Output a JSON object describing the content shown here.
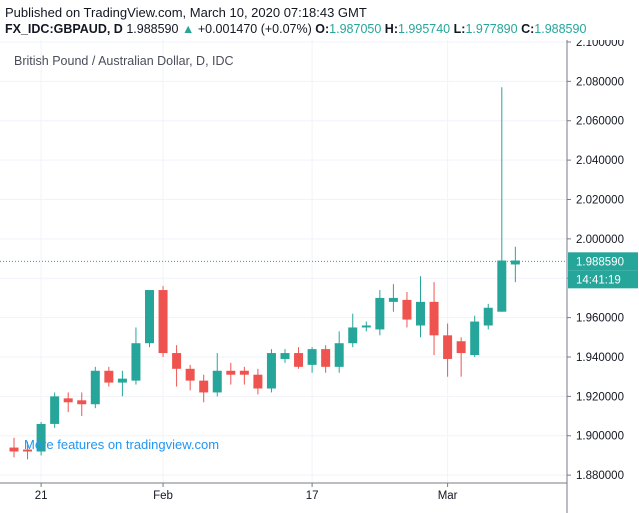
{
  "header": {
    "published": "Published on TradingView.com, March 10, 2020 07:18:43 GMT",
    "symbol": "FX_IDC:GBPAUD, D",
    "last": "1.988590",
    "change": "+0.001470 (+0.07%)",
    "o_label": "O:",
    "o_value": "1.987050",
    "h_label": "H:",
    "h_value": "1.995740",
    "l_label": "L:",
    "l_value": "1.977890",
    "c_label": "C:",
    "c_value": "1.988590"
  },
  "overlay": {
    "title": "British Pound / Australian Dollar, D, IDC",
    "promo": "More features on tradingview.com"
  },
  "colors": {
    "up": "#26a69a",
    "down": "#ef5350",
    "price_line": "#26a69a",
    "text": "#131722"
  },
  "chart_data": {
    "type": "candlestick",
    "title": "British Pound / Australian Dollar, D, IDC",
    "y_ticks": [
      "1.880000",
      "1.900000",
      "1.920000",
      "1.940000",
      "1.960000",
      "1.980000",
      "2.000000",
      "2.020000",
      "2.040000",
      "2.060000",
      "2.080000",
      "2.100000"
    ],
    "ylim": [
      1.876,
      2.101
    ],
    "x_ticks": [
      {
        "label": "21",
        "index": 2
      },
      {
        "label": "Feb",
        "index": 11
      },
      {
        "label": "17",
        "index": 22
      },
      {
        "label": "Mar",
        "index": 32
      }
    ],
    "last_price_label": "1.988590",
    "countdown_label": "14:41:19",
    "grid": true,
    "candles": [
      {
        "o": 1.894,
        "h": 1.899,
        "l": 1.889,
        "c": 1.892
      },
      {
        "o": 1.893,
        "h": 1.897,
        "l": 1.888,
        "c": 1.892
      },
      {
        "o": 1.892,
        "h": 1.907,
        "l": 1.89,
        "c": 1.906
      },
      {
        "o": 1.906,
        "h": 1.922,
        "l": 1.904,
        "c": 1.92
      },
      {
        "o": 1.919,
        "h": 1.922,
        "l": 1.912,
        "c": 1.917
      },
      {
        "o": 1.918,
        "h": 1.922,
        "l": 1.91,
        "c": 1.916
      },
      {
        "o": 1.916,
        "h": 1.935,
        "l": 1.914,
        "c": 1.933
      },
      {
        "o": 1.933,
        "h": 1.935,
        "l": 1.925,
        "c": 1.927
      },
      {
        "o": 1.927,
        "h": 1.933,
        "l": 1.92,
        "c": 1.929
      },
      {
        "o": 1.928,
        "h": 1.955,
        "l": 1.926,
        "c": 1.947
      },
      {
        "o": 1.947,
        "h": 1.974,
        "l": 1.945,
        "c": 1.974
      },
      {
        "o": 1.974,
        "h": 1.976,
        "l": 1.94,
        "c": 1.942
      },
      {
        "o": 1.942,
        "h": 1.946,
        "l": 1.925,
        "c": 1.934
      },
      {
        "o": 1.934,
        "h": 1.936,
        "l": 1.923,
        "c": 1.928
      },
      {
        "o": 1.928,
        "h": 1.931,
        "l": 1.917,
        "c": 1.922
      },
      {
        "o": 1.922,
        "h": 1.942,
        "l": 1.92,
        "c": 1.933
      },
      {
        "o": 1.933,
        "h": 1.937,
        "l": 1.926,
        "c": 1.931
      },
      {
        "o": 1.933,
        "h": 1.935,
        "l": 1.926,
        "c": 1.931
      },
      {
        "o": 1.931,
        "h": 1.934,
        "l": 1.921,
        "c": 1.924
      },
      {
        "o": 1.924,
        "h": 1.944,
        "l": 1.922,
        "c": 1.942
      },
      {
        "o": 1.939,
        "h": 1.944,
        "l": 1.937,
        "c": 1.942
      },
      {
        "o": 1.942,
        "h": 1.945,
        "l": 1.934,
        "c": 1.935
      },
      {
        "o": 1.936,
        "h": 1.945,
        "l": 1.932,
        "c": 1.944
      },
      {
        "o": 1.944,
        "h": 1.946,
        "l": 1.932,
        "c": 1.935
      },
      {
        "o": 1.935,
        "h": 1.953,
        "l": 1.932,
        "c": 1.947
      },
      {
        "o": 1.947,
        "h": 1.962,
        "l": 1.945,
        "c": 1.955
      },
      {
        "o": 1.955,
        "h": 1.958,
        "l": 1.953,
        "c": 1.956
      },
      {
        "o": 1.954,
        "h": 1.974,
        "l": 1.951,
        "c": 1.97
      },
      {
        "o": 1.968,
        "h": 1.977,
        "l": 1.963,
        "c": 1.97
      },
      {
        "o": 1.969,
        "h": 1.973,
        "l": 1.955,
        "c": 1.959
      },
      {
        "o": 1.956,
        "h": 1.981,
        "l": 1.95,
        "c": 1.968
      },
      {
        "o": 1.968,
        "h": 1.978,
        "l": 1.941,
        "c": 1.951
      },
      {
        "o": 1.951,
        "h": 1.957,
        "l": 1.93,
        "c": 1.939
      },
      {
        "o": 1.948,
        "h": 1.95,
        "l": 1.93,
        "c": 1.942
      },
      {
        "o": 1.941,
        "h": 1.961,
        "l": 1.94,
        "c": 1.958
      },
      {
        "o": 1.956,
        "h": 1.967,
        "l": 1.954,
        "c": 1.965
      },
      {
        "o": 1.963,
        "h": 2.077,
        "l": 1.963,
        "c": 1.989
      },
      {
        "o": 1.987,
        "h": 1.996,
        "l": 1.978,
        "c": 1.989
      }
    ]
  }
}
